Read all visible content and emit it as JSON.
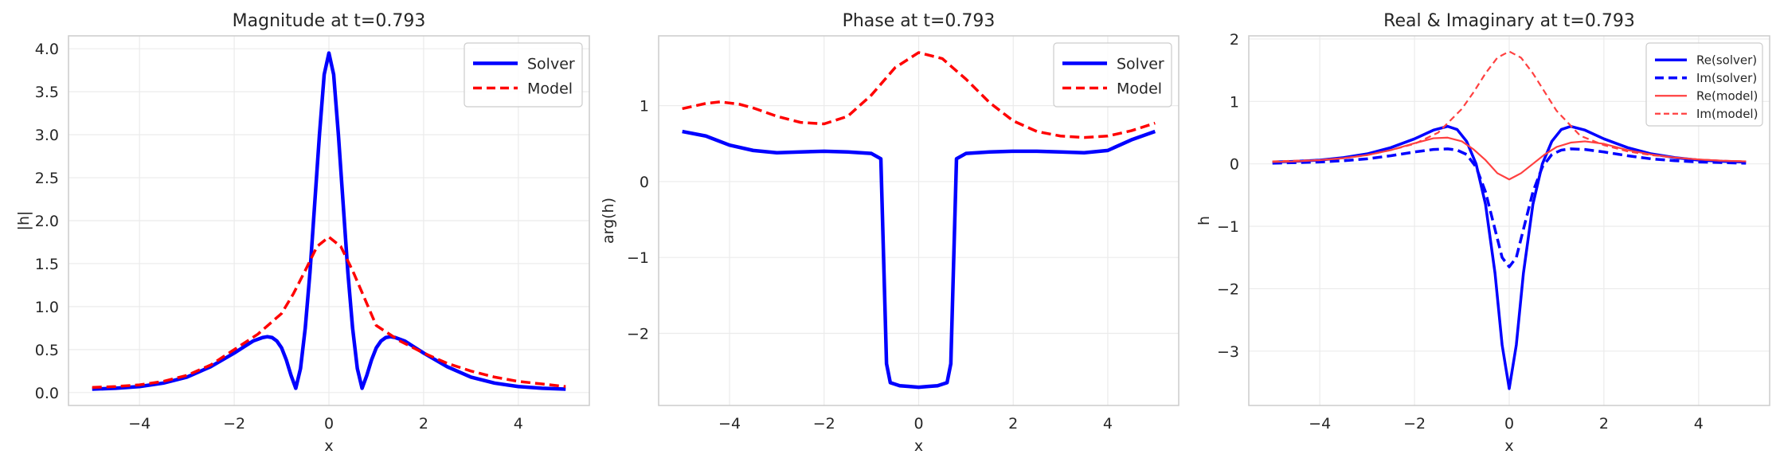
{
  "chart_data": [
    {
      "type": "line",
      "title": "Magnitude at t=0.793",
      "xlabel": "x",
      "ylabel": "|h|",
      "xlim": [
        -5.5,
        5.5
      ],
      "ylim": [
        -0.15,
        4.15
      ],
      "xticks": [
        -4,
        -2,
        0,
        2,
        4
      ],
      "xtick_labels": [
        "−4",
        "−2",
        "0",
        "2",
        "4"
      ],
      "yticks": [
        0.0,
        0.5,
        1.0,
        1.5,
        2.0,
        2.5,
        3.0,
        3.5,
        4.0
      ],
      "ytick_labels": [
        "0.0",
        "0.5",
        "1.0",
        "1.5",
        "2.0",
        "2.5",
        "3.0",
        "3.5",
        "4.0"
      ],
      "grid": true,
      "legend_position": "top-right",
      "series": [
        {
          "name": "Solver",
          "color": "#0000ff",
          "style": "solid",
          "x": [
            -5,
            -4.5,
            -4,
            -3.5,
            -3,
            -2.5,
            -2,
            -1.8,
            -1.6,
            -1.4,
            -1.3,
            -1.2,
            -1.1,
            -1.0,
            -0.9,
            -0.8,
            -0.7,
            -0.6,
            -0.5,
            -0.4,
            -0.3,
            -0.2,
            -0.1,
            0,
            0.1,
            0.2,
            0.3,
            0.4,
            0.5,
            0.6,
            0.7,
            0.8,
            0.9,
            1.0,
            1.1,
            1.2,
            1.3,
            1.4,
            1.6,
            1.8,
            2,
            2.5,
            3,
            3.5,
            4,
            4.5,
            5
          ],
          "y": [
            0.04,
            0.05,
            0.07,
            0.11,
            0.18,
            0.3,
            0.46,
            0.53,
            0.6,
            0.64,
            0.65,
            0.64,
            0.6,
            0.52,
            0.38,
            0.2,
            0.05,
            0.28,
            0.75,
            1.4,
            2.2,
            3.0,
            3.7,
            3.95,
            3.7,
            3.0,
            2.2,
            1.4,
            0.75,
            0.28,
            0.05,
            0.2,
            0.38,
            0.52,
            0.6,
            0.64,
            0.65,
            0.64,
            0.6,
            0.53,
            0.46,
            0.3,
            0.18,
            0.11,
            0.07,
            0.05,
            0.04
          ]
        },
        {
          "name": "Model",
          "color": "#ff0000",
          "style": "dashed",
          "x": [
            -5,
            -4.5,
            -4,
            -3.5,
            -3,
            -2.5,
            -2,
            -1.5,
            -1,
            -0.75,
            -0.5,
            -0.25,
            0,
            0.25,
            0.5,
            0.75,
            1,
            1.5,
            2,
            2.5,
            3,
            3.5,
            4,
            4.5,
            5
          ],
          "y": [
            0.06,
            0.07,
            0.09,
            0.13,
            0.2,
            0.32,
            0.5,
            0.68,
            0.92,
            1.15,
            1.42,
            1.7,
            1.81,
            1.7,
            1.42,
            1.1,
            0.78,
            0.6,
            0.46,
            0.34,
            0.25,
            0.18,
            0.13,
            0.1,
            0.07
          ]
        }
      ]
    },
    {
      "type": "line",
      "title": "Phase at t=0.793",
      "xlabel": "x",
      "ylabel": "arg(h)",
      "xlim": [
        -5.5,
        5.5
      ],
      "ylim": [
        -2.95,
        1.92
      ],
      "xticks": [
        -4,
        -2,
        0,
        2,
        4
      ],
      "xtick_labels": [
        "−4",
        "−2",
        "0",
        "2",
        "4"
      ],
      "yticks": [
        -2,
        -1,
        0,
        1
      ],
      "ytick_labels": [
        "−2",
        "−1",
        "0",
        "1"
      ],
      "grid": true,
      "legend_position": "top-right",
      "series": [
        {
          "name": "Solver",
          "color": "#0000ff",
          "style": "solid",
          "x": [
            -5,
            -4.5,
            -4,
            -3.5,
            -3,
            -2.5,
            -2,
            -1.5,
            -1,
            -0.8,
            -0.72,
            -0.68,
            -0.6,
            -0.4,
            -0.2,
            0,
            0.2,
            0.4,
            0.6,
            0.68,
            0.72,
            0.8,
            1,
            1.5,
            2,
            2.5,
            3,
            3.5,
            4,
            4.5,
            5
          ],
          "y": [
            0.66,
            0.6,
            0.48,
            0.41,
            0.38,
            0.39,
            0.4,
            0.39,
            0.37,
            0.3,
            -1.5,
            -2.4,
            -2.65,
            -2.69,
            -2.7,
            -2.71,
            -2.7,
            -2.69,
            -2.65,
            -2.4,
            -1.5,
            0.3,
            0.37,
            0.39,
            0.4,
            0.4,
            0.39,
            0.38,
            0.41,
            0.55,
            0.66
          ]
        },
        {
          "name": "Model",
          "color": "#ff0000",
          "style": "dashed",
          "x": [
            -5,
            -4.5,
            -4.2,
            -3.8,
            -3.5,
            -3,
            -2.5,
            -2,
            -1.5,
            -1,
            -0.5,
            0,
            0.5,
            1,
            1.5,
            2,
            2.5,
            3,
            3.5,
            4,
            4.5,
            5
          ],
          "y": [
            0.96,
            1.03,
            1.05,
            1.02,
            0.97,
            0.86,
            0.78,
            0.76,
            0.86,
            1.14,
            1.5,
            1.7,
            1.62,
            1.35,
            1.04,
            0.8,
            0.66,
            0.6,
            0.58,
            0.6,
            0.67,
            0.77
          ]
        }
      ]
    },
    {
      "type": "line",
      "title": "Real & Imaginary at t=0.793",
      "xlabel": "x",
      "ylabel": "h",
      "xlim": [
        -5.5,
        5.5
      ],
      "ylim": [
        -3.87,
        2.05
      ],
      "xticks": [
        -4,
        -2,
        0,
        2,
        4
      ],
      "xtick_labels": [
        "−4",
        "−2",
        "0",
        "2",
        "4"
      ],
      "yticks": [
        -3,
        -2,
        -1,
        0,
        1,
        2
      ],
      "ytick_labels": [
        "−3",
        "−2",
        "−1",
        "0",
        "1",
        "2"
      ],
      "grid": true,
      "legend_position": "top-right",
      "series": [
        {
          "name": "Re(solver)",
          "color": "#0000ff",
          "style": "solid",
          "x": [
            -5,
            -4.5,
            -4,
            -3.5,
            -3,
            -2.5,
            -2,
            -1.6,
            -1.3,
            -1.1,
            -0.9,
            -0.7,
            -0.5,
            -0.3,
            -0.15,
            0,
            0.15,
            0.3,
            0.5,
            0.7,
            0.9,
            1.1,
            1.3,
            1.6,
            2,
            2.5,
            3,
            3.5,
            4,
            4.5,
            5
          ],
          "y": [
            0.03,
            0.04,
            0.06,
            0.1,
            0.16,
            0.26,
            0.4,
            0.54,
            0.6,
            0.55,
            0.36,
            0.0,
            -0.65,
            -1.75,
            -2.9,
            -3.6,
            -2.9,
            -1.75,
            -0.65,
            0.0,
            0.36,
            0.55,
            0.6,
            0.54,
            0.4,
            0.26,
            0.16,
            0.1,
            0.06,
            0.04,
            0.03
          ]
        },
        {
          "name": "Im(solver)",
          "color": "#0000ff",
          "style": "dashed",
          "x": [
            -5,
            -4.5,
            -4,
            -3.5,
            -3,
            -2.5,
            -2,
            -1.6,
            -1.3,
            -1.1,
            -0.9,
            -0.7,
            -0.5,
            -0.3,
            -0.15,
            0,
            0.15,
            0.3,
            0.5,
            0.7,
            0.9,
            1.1,
            1.3,
            1.6,
            2,
            2.5,
            3,
            3.5,
            4,
            4.5,
            5
          ],
          "y": [
            0.01,
            0.02,
            0.03,
            0.05,
            0.08,
            0.13,
            0.19,
            0.23,
            0.24,
            0.22,
            0.15,
            -0.05,
            -0.45,
            -1.05,
            -1.5,
            -1.65,
            -1.5,
            -1.05,
            -0.45,
            -0.05,
            0.15,
            0.22,
            0.24,
            0.23,
            0.19,
            0.13,
            0.08,
            0.05,
            0.03,
            0.02,
            0.01
          ]
        },
        {
          "name": "Re(model)",
          "color": "#ff4040",
          "style": "solid",
          "x": [
            -5,
            -4.5,
            -4,
            -3.5,
            -3,
            -2.5,
            -2,
            -1.6,
            -1.3,
            -1.0,
            -0.75,
            -0.5,
            -0.25,
            0,
            0.25,
            0.5,
            0.75,
            1.0,
            1.3,
            1.6,
            2,
            2.5,
            3,
            3.5,
            4,
            4.5,
            5
          ],
          "y": [
            0.03,
            0.04,
            0.06,
            0.09,
            0.14,
            0.22,
            0.33,
            0.41,
            0.42,
            0.36,
            0.23,
            0.06,
            -0.15,
            -0.25,
            -0.15,
            0.0,
            0.15,
            0.27,
            0.34,
            0.36,
            0.32,
            0.22,
            0.15,
            0.1,
            0.07,
            0.05,
            0.04
          ]
        },
        {
          "name": "Im(model)",
          "color": "#ff4040",
          "style": "dashed",
          "x": [
            -5,
            -4.5,
            -4,
            -3.5,
            -3,
            -2.5,
            -2,
            -1.5,
            -1,
            -0.75,
            -0.5,
            -0.25,
            0,
            0.25,
            0.5,
            0.75,
            1,
            1.5,
            2,
            2.5,
            3,
            3.5,
            4,
            4.5,
            5
          ],
          "y": [
            0.04,
            0.05,
            0.06,
            0.09,
            0.14,
            0.22,
            0.32,
            0.5,
            0.88,
            1.15,
            1.45,
            1.7,
            1.8,
            1.7,
            1.45,
            1.15,
            0.85,
            0.45,
            0.3,
            0.2,
            0.14,
            0.1,
            0.07,
            0.05,
            0.04
          ]
        }
      ]
    }
  ]
}
